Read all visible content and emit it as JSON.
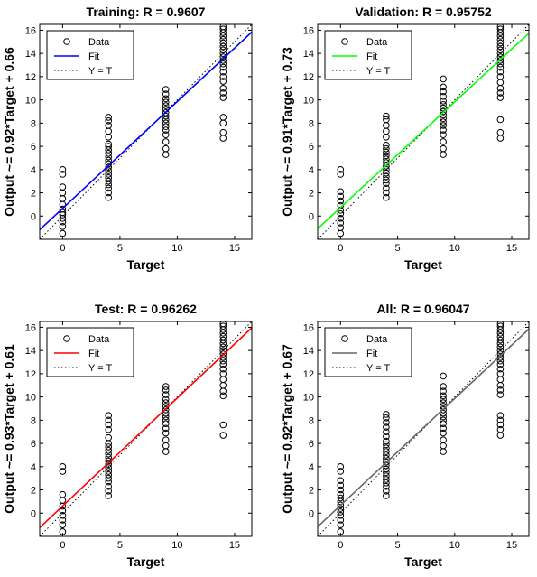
{
  "chart_data": [
    {
      "type": "scatter",
      "title": "Training: R = 0.9607",
      "xlabel": "Target",
      "ylabel": "Output ~= 0.92*Target + 0.66",
      "xlim": [
        -2,
        16.5
      ],
      "ylim": [
        -2,
        16.5
      ],
      "xticks": [
        0,
        5,
        10,
        15
      ],
      "yticks": [
        0,
        2,
        4,
        6,
        8,
        10,
        12,
        14,
        16
      ],
      "fit": {
        "slope": 0.92,
        "intercept": 0.66,
        "color": "#0000ff"
      },
      "legend": [
        {
          "label": "Data",
          "marker": "circle"
        },
        {
          "label": "Fit",
          "color": "#0000ff"
        },
        {
          "label": "Y = T",
          "style": "dotted"
        }
      ],
      "series": [
        {
          "x": 0,
          "y": [
            -1.5,
            -0.9,
            -0.5,
            -0.2,
            0.1,
            0.3,
            0.6,
            1.0,
            1.5,
            2.0,
            2.5,
            3.6,
            4.0
          ]
        },
        {
          "x": 4,
          "y": [
            1.6,
            2.0,
            2.4,
            2.7,
            3.0,
            3.3,
            3.6,
            3.9,
            4.2,
            4.5,
            4.8,
            5.1,
            5.4,
            5.7,
            6.0,
            6.2,
            6.8,
            7.3,
            7.8,
            8.2,
            8.5
          ]
        },
        {
          "x": 9,
          "y": [
            5.3,
            5.8,
            6.4,
            7.0,
            7.4,
            7.7,
            8.0,
            8.3,
            8.6,
            8.9,
            9.2,
            9.5,
            9.8,
            10.1,
            10.5,
            10.9
          ]
        },
        {
          "x": 14,
          "y": [
            6.7,
            7.2,
            8.0,
            8.5,
            10.2,
            10.6,
            11.0,
            11.6,
            12.0,
            12.4,
            12.8,
            13.1,
            13.4,
            13.7,
            14.0,
            14.3,
            14.6,
            14.9,
            15.2,
            15.5,
            15.8,
            16.1,
            16.3
          ]
        }
      ]
    },
    {
      "type": "scatter",
      "title": "Validation: R = 0.95752",
      "xlabel": "Target",
      "ylabel": "Output ~= 0.91*Target + 0.73",
      "xlim": [
        -2,
        16.5
      ],
      "ylim": [
        -2,
        16.5
      ],
      "xticks": [
        0,
        5,
        10,
        15
      ],
      "yticks": [
        0,
        2,
        4,
        6,
        8,
        10,
        12,
        14,
        16
      ],
      "fit": {
        "slope": 0.91,
        "intercept": 0.73,
        "color": "#00ff00"
      },
      "legend": [
        {
          "label": "Data",
          "marker": "circle"
        },
        {
          "label": "Fit",
          "color": "#00ff00"
        },
        {
          "label": "Y = T",
          "style": "dotted"
        }
      ],
      "series": [
        {
          "x": 0,
          "y": [
            -1.5,
            -1.0,
            -0.6,
            -0.2,
            0.2,
            0.5,
            0.9,
            1.3,
            1.7,
            2.1,
            3.6,
            4.0
          ]
        },
        {
          "x": 4,
          "y": [
            1.6,
            2.0,
            2.4,
            2.8,
            3.1,
            3.4,
            3.7,
            4.0,
            4.3,
            4.6,
            4.9,
            5.2,
            5.5,
            5.8,
            6.1,
            6.8,
            7.3,
            7.8,
            8.3,
            8.6
          ]
        },
        {
          "x": 9,
          "y": [
            5.3,
            5.8,
            6.4,
            7.0,
            7.4,
            7.8,
            8.1,
            8.4,
            8.7,
            9.0,
            9.3,
            9.6,
            9.9,
            10.3,
            10.7,
            11.1,
            11.8
          ]
        },
        {
          "x": 14,
          "y": [
            6.7,
            7.2,
            8.3,
            10.2,
            10.6,
            11.0,
            11.5,
            12.0,
            12.4,
            12.8,
            13.1,
            13.4,
            13.7,
            14.0,
            14.3,
            14.6,
            14.9,
            15.2,
            15.5,
            15.8,
            16.1,
            16.3
          ]
        }
      ]
    },
    {
      "type": "scatter",
      "title": "Test: R = 0.96262",
      "xlabel": "Target",
      "ylabel": "Output ~= 0.93*Target + 0.61",
      "xlim": [
        -2,
        16.5
      ],
      "ylim": [
        -2,
        16.5
      ],
      "xticks": [
        0,
        5,
        10,
        15
      ],
      "yticks": [
        0,
        2,
        4,
        6,
        8,
        10,
        12,
        14,
        16
      ],
      "fit": {
        "slope": 0.93,
        "intercept": 0.61,
        "color": "#ff0000"
      },
      "legend": [
        {
          "label": "Data",
          "marker": "circle"
        },
        {
          "label": "Fit",
          "color": "#ff0000"
        },
        {
          "label": "Y = T",
          "style": "dotted"
        }
      ],
      "series": [
        {
          "x": 0,
          "y": [
            -1.6,
            -1.0,
            -0.6,
            -0.2,
            0.2,
            0.6,
            1.1,
            1.6,
            3.6,
            4.0
          ]
        },
        {
          "x": 4,
          "y": [
            1.5,
            1.9,
            2.3,
            2.7,
            3.0,
            3.3,
            3.6,
            3.9,
            4.2,
            4.5,
            4.8,
            5.1,
            5.4,
            5.7,
            6.0,
            6.5,
            7.2,
            7.6,
            8.0,
            8.4
          ]
        },
        {
          "x": 9,
          "y": [
            5.3,
            5.8,
            6.3,
            6.9,
            7.3,
            7.7,
            8.0,
            8.3,
            8.6,
            8.9,
            9.2,
            9.5,
            9.8,
            10.2,
            10.6,
            10.9
          ]
        },
        {
          "x": 14,
          "y": [
            6.7,
            7.6,
            10.1,
            10.5,
            11.0,
            11.5,
            12.0,
            12.4,
            12.8,
            13.1,
            13.4,
            13.7,
            14.0,
            14.3,
            14.6,
            14.9,
            15.2,
            15.5,
            15.8,
            16.1,
            16.3
          ]
        }
      ]
    },
    {
      "type": "scatter",
      "title": "All: R = 0.96047",
      "xlabel": "Target",
      "ylabel": "Output ~= 0.92*Target + 0.67",
      "xlim": [
        -2,
        16.5
      ],
      "ylim": [
        -2,
        16.5
      ],
      "xticks": [
        0,
        5,
        10,
        15
      ],
      "yticks": [
        0,
        2,
        4,
        6,
        8,
        10,
        12,
        14,
        16
      ],
      "fit": {
        "slope": 0.92,
        "intercept": 0.67,
        "color": "#666666"
      },
      "legend": [
        {
          "label": "Data",
          "marker": "circle"
        },
        {
          "label": "Fit",
          "color": "#666666"
        },
        {
          "label": "Y = T",
          "style": "dotted"
        }
      ],
      "series": [
        {
          "x": 0,
          "y": [
            -1.6,
            -1.0,
            -0.6,
            -0.2,
            0.1,
            0.4,
            0.7,
            1.0,
            1.3,
            1.6,
            2.0,
            2.4,
            2.8,
            3.6,
            4.0
          ]
        },
        {
          "x": 4,
          "y": [
            1.5,
            1.9,
            2.3,
            2.6,
            2.9,
            3.2,
            3.5,
            3.8,
            4.1,
            4.4,
            4.7,
            5.0,
            5.3,
            5.6,
            5.9,
            6.2,
            6.6,
            7.0,
            7.4,
            7.8,
            8.2,
            8.5
          ]
        },
        {
          "x": 9,
          "y": [
            5.3,
            5.8,
            6.3,
            6.9,
            7.3,
            7.7,
            8.0,
            8.3,
            8.6,
            8.9,
            9.2,
            9.5,
            9.8,
            10.1,
            10.5,
            10.9,
            11.8
          ]
        },
        {
          "x": 14,
          "y": [
            6.7,
            7.2,
            7.6,
            8.0,
            8.4,
            10.2,
            10.6,
            11.0,
            11.5,
            12.0,
            12.4,
            12.8,
            13.1,
            13.4,
            13.7,
            14.0,
            14.3,
            14.6,
            14.9,
            15.2,
            15.5,
            15.8,
            16.1,
            16.3
          ]
        }
      ]
    }
  ]
}
